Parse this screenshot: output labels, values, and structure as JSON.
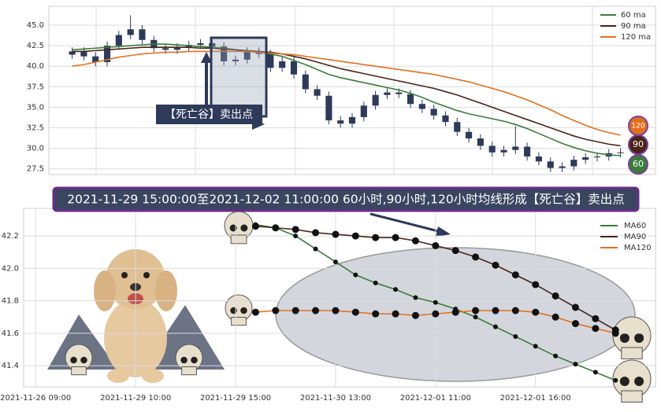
{
  "chart_data": [
    {
      "type": "candlestick",
      "annotation": "【死亡谷】卖出点",
      "open": [
        41.4,
        41.8,
        41.2,
        40.5,
        42.5,
        43.8,
        44.5,
        43.2,
        42.2,
        42.0,
        42.3,
        42.6,
        42.8,
        42.4,
        40.6,
        40.8,
        41.8,
        41.5,
        39.8,
        40.6,
        39.0,
        37.2,
        36.4,
        33.4,
        33.0,
        33.8,
        35.2,
        36.5,
        36.8,
        36.6,
        35.4,
        34.8,
        34.0,
        33.2,
        32.0,
        31.2,
        30.3,
        29.5,
        29.8,
        30.2,
        29.0,
        28.4,
        27.6,
        27.8,
        28.6,
        28.9,
        29.0,
        29.4
      ],
      "high": [
        42.3,
        42.3,
        41.7,
        43.0,
        44.3,
        46.2,
        45.0,
        43.7,
        42.7,
        42.8,
        43.1,
        43.3,
        43.3,
        42.9,
        41.3,
        42.3,
        42.3,
        42.0,
        41.1,
        41.1,
        39.5,
        37.7,
        36.9,
        33.9,
        34.3,
        35.7,
        37.0,
        37.3,
        37.3,
        37.1,
        35.9,
        35.3,
        34.5,
        33.7,
        32.5,
        31.7,
        30.8,
        30.3,
        32.7,
        30.7,
        29.5,
        28.9,
        28.3,
        29.1,
        29.4,
        29.5,
        29.9,
        30.0
      ],
      "low": [
        40.9,
        40.7,
        40.0,
        40.0,
        42.0,
        43.3,
        42.7,
        41.7,
        41.5,
        41.5,
        41.8,
        42.1,
        41.9,
        40.1,
        40.1,
        40.3,
        41.0,
        39.3,
        39.3,
        38.5,
        36.7,
        35.9,
        32.9,
        32.5,
        32.5,
        33.3,
        34.7,
        36.0,
        36.1,
        34.9,
        34.3,
        33.5,
        32.7,
        31.5,
        30.7,
        29.8,
        29.0,
        29.0,
        29.3,
        28.5,
        27.9,
        27.1,
        27.1,
        27.3,
        28.1,
        28.4,
        28.5,
        28.9
      ],
      "close": [
        41.8,
        41.2,
        40.5,
        42.5,
        43.8,
        44.5,
        43.2,
        42.2,
        42.0,
        42.3,
        42.6,
        42.8,
        42.4,
        40.6,
        40.8,
        41.8,
        41.5,
        39.8,
        40.6,
        39.0,
        37.2,
        36.4,
        33.4,
        33.0,
        33.8,
        35.2,
        36.5,
        36.8,
        36.6,
        35.4,
        34.8,
        34.0,
        33.2,
        32.0,
        31.2,
        30.3,
        29.5,
        29.8,
        30.2,
        29.0,
        28.4,
        27.6,
        27.8,
        28.6,
        28.9,
        29.0,
        29.4,
        29.5
      ],
      "candle_color": "#2e3a5a",
      "series": [
        {
          "name": "60 ma",
          "color": "#3a7d3a",
          "badge": "60",
          "values": [
            42.0,
            42.1,
            42.2,
            42.3,
            42.4,
            42.5,
            42.6,
            42.7,
            42.7,
            42.6,
            42.5,
            42.4,
            42.3,
            42.2,
            42.0,
            41.8,
            41.7,
            41.5,
            41.2,
            40.7,
            40.2,
            39.6,
            39.0,
            38.6,
            38.3,
            38.0,
            37.7,
            37.4,
            37.1,
            36.7,
            36.2,
            35.6,
            35.1,
            34.6,
            34.2,
            33.9,
            33.6,
            33.3,
            32.9,
            32.4,
            31.8,
            31.2,
            30.6,
            30.1,
            29.7,
            29.4,
            29.2,
            29.1
          ]
        },
        {
          "name": "90 ma",
          "color": "#4a2418",
          "badge": "90",
          "values": [
            41.8,
            41.8,
            41.9,
            42.0,
            42.1,
            42.2,
            42.3,
            42.3,
            42.3,
            42.3,
            42.3,
            42.2,
            42.2,
            42.1,
            42.0,
            41.9,
            41.8,
            41.7,
            41.5,
            41.2,
            40.9,
            40.5,
            40.1,
            39.7,
            39.4,
            39.1,
            38.8,
            38.5,
            38.2,
            37.9,
            37.6,
            37.3,
            36.9,
            36.5,
            36.0,
            35.5,
            35.0,
            34.5,
            34.0,
            33.5,
            33.0,
            32.5,
            32.0,
            31.5,
            31.1,
            30.8,
            30.5,
            30.3
          ]
        },
        {
          "name": "120 ma",
          "color": "#e07020",
          "badge": "120",
          "values": [
            40.0,
            40.2,
            40.5,
            40.8,
            41.1,
            41.3,
            41.5,
            41.6,
            41.7,
            41.7,
            41.8,
            41.8,
            41.8,
            41.8,
            41.8,
            41.8,
            41.7,
            41.6,
            41.5,
            41.4,
            41.2,
            41.0,
            40.8,
            40.6,
            40.4,
            40.2,
            40.0,
            39.8,
            39.6,
            39.4,
            39.2,
            39.0,
            38.7,
            38.4,
            38.1,
            37.7,
            37.3,
            36.9,
            36.4,
            35.9,
            35.3,
            34.7,
            34.0,
            33.4,
            32.8,
            32.3,
            31.9,
            31.6
          ]
        }
      ],
      "xlim": [
        -2,
        50
      ],
      "ylim": [
        26.8,
        47.3
      ],
      "yticks": [
        {
          "value": 27.5,
          "label": "27.5"
        },
        {
          "value": 30,
          "label": "30.0"
        },
        32.5,
        {
          "value": 35,
          "label": "35.0"
        },
        37.5,
        {
          "value": 40,
          "label": "40.0"
        },
        42.5,
        {
          "value": 45,
          "label": "45.0"
        }
      ],
      "grid": true,
      "legend": "upper right"
    },
    {
      "type": "line",
      "title": "2021-11-29 15:00:00至2021-12-02 11:00:00 60小时,90小时,120小时均线形成【死亡谷】卖出点",
      "x": [
        11,
        12,
        13,
        14,
        15,
        16,
        17,
        18,
        19,
        20,
        21,
        22,
        23,
        24,
        25,
        26,
        27,
        28,
        29
      ],
      "series": [
        {
          "name": "MA60",
          "color": "#3a7d3a",
          "values": [
            42.27,
            42.25,
            42.2,
            42.12,
            42.04,
            41.96,
            41.91,
            41.87,
            41.82,
            41.79,
            41.75,
            41.7,
            41.64,
            41.58,
            41.52,
            41.46,
            41.41,
            41.36,
            41.31
          ]
        },
        {
          "name": "MA90",
          "color": "#4a2418",
          "values": [
            42.26,
            42.25,
            42.24,
            42.22,
            42.21,
            42.2,
            42.19,
            42.19,
            42.17,
            42.14,
            42.11,
            42.07,
            42.02,
            41.96,
            41.9,
            41.83,
            41.76,
            41.69,
            41.62
          ]
        },
        {
          "name": "MA120",
          "color": "#e07020",
          "values": [
            41.73,
            41.74,
            41.74,
            41.74,
            41.74,
            41.73,
            41.72,
            41.72,
            41.71,
            41.72,
            41.73,
            41.74,
            41.74,
            41.74,
            41.73,
            41.7,
            41.66,
            41.63,
            41.6
          ]
        }
      ],
      "xlim": [
        -0.6,
        31
      ],
      "ylim": [
        41.27,
        42.37
      ],
      "xticks": [
        {
          "value": 0,
          "label": "2021-11-26 09:00"
        },
        {
          "value": 5,
          "label": "2021-11-29 10:00"
        },
        {
          "value": 10,
          "label": "2021-11-29 15:00"
        },
        {
          "value": 15,
          "label": "2021-11-30 13:00"
        },
        {
          "value": 20,
          "label": "2021-12-01 11:00"
        },
        {
          "value": 25,
          "label": "2021-12-01 16:00"
        }
      ],
      "yticks": [
        41.4,
        41.6,
        41.8,
        {
          "value": 42,
          "label": "42.0"
        },
        42.2
      ],
      "grid": true,
      "legend": "upper right"
    }
  ]
}
